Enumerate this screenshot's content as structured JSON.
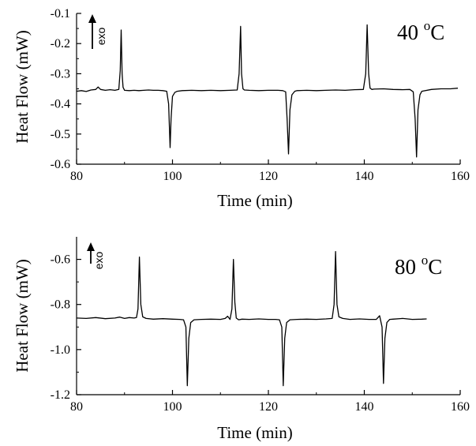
{
  "chart_data": [
    {
      "type": "line",
      "xlabel": "Time (min)",
      "ylabel": "Heat Flow (mW)",
      "xlim": [
        80,
        160
      ],
      "ylim": [
        -0.6,
        -0.1
      ],
      "x_ticks": [
        80,
        100,
        120,
        140,
        160
      ],
      "y_ticks": [
        -0.6,
        -0.5,
        -0.4,
        -0.3,
        -0.2,
        -0.1
      ],
      "x_tick_labels": [
        "80",
        "100",
        "120",
        "140",
        "160"
      ],
      "y_tick_labels": [
        "-0.6",
        "-0.5",
        "-0.4",
        "-0.3",
        "-0.2",
        "-0.1"
      ],
      "annotation": {
        "value": "40 ",
        "sup": "o",
        "unit": "C"
      },
      "direction_label": "exo",
      "grid": false,
      "series": [
        {
          "x": [
            80,
            81,
            82,
            83,
            84,
            84.5,
            85,
            86,
            87,
            88,
            88.8,
            89.1,
            89.3,
            89.5,
            89.7,
            90,
            91,
            92,
            93,
            94,
            95,
            96,
            97,
            98,
            98.8,
            99.2,
            99.5,
            99.7,
            100,
            100.5,
            101,
            102,
            104,
            106,
            108,
            110,
            112,
            113.5,
            113.9,
            114.2,
            114.4,
            114.7,
            115,
            116,
            118,
            120,
            122,
            123,
            123.6,
            123.9,
            124.2,
            124.5,
            124.9,
            125.5,
            126,
            128,
            130,
            132,
            134,
            136,
            138,
            139.8,
            140.3,
            140.6,
            140.9,
            141.2,
            141.6,
            142,
            144,
            146,
            148,
            149.5,
            150.2,
            150.6,
            150.9,
            151.2,
            151.6,
            152,
            154,
            156,
            158,
            159.5
          ],
          "y": [
            -0.358,
            -0.356,
            -0.359,
            -0.354,
            -0.352,
            -0.344,
            -0.352,
            -0.355,
            -0.353,
            -0.355,
            -0.352,
            -0.29,
            -0.155,
            -0.3,
            -0.345,
            -0.355,
            -0.356,
            -0.355,
            -0.356,
            -0.355,
            -0.354,
            -0.355,
            -0.355,
            -0.356,
            -0.358,
            -0.4,
            -0.545,
            -0.45,
            -0.375,
            -0.362,
            -0.358,
            -0.356,
            -0.355,
            -0.356,
            -0.355,
            -0.356,
            -0.355,
            -0.354,
            -0.3,
            -0.143,
            -0.3,
            -0.35,
            -0.354,
            -0.355,
            -0.356,
            -0.355,
            -0.355,
            -0.356,
            -0.36,
            -0.45,
            -0.566,
            -0.42,
            -0.37,
            -0.358,
            -0.356,
            -0.355,
            -0.356,
            -0.355,
            -0.354,
            -0.355,
            -0.353,
            -0.352,
            -0.3,
            -0.138,
            -0.3,
            -0.348,
            -0.352,
            -0.351,
            -0.35,
            -0.352,
            -0.353,
            -0.352,
            -0.36,
            -0.45,
            -0.576,
            -0.42,
            -0.37,
            -0.358,
            -0.352,
            -0.35,
            -0.35,
            -0.348
          ]
        }
      ]
    },
    {
      "type": "line",
      "xlabel": "Time (min)",
      "ylabel": "Heat Flow (mW)",
      "xlim": [
        80,
        160
      ],
      "ylim": [
        -1.2,
        -0.5
      ],
      "x_ticks": [
        80,
        100,
        120,
        140,
        160
      ],
      "y_ticks": [
        -1.2,
        -1.0,
        -0.8,
        -0.6
      ],
      "x_tick_labels": [
        "80",
        "100",
        "120",
        "140",
        "160"
      ],
      "y_tick_labels": [
        "-1.2",
        "-1.0",
        "-0.8",
        "-0.6"
      ],
      "annotation": {
        "value": "80 ",
        "sup": "o",
        "unit": "C"
      },
      "direction_label": "exo",
      "grid": false,
      "series": [
        {
          "x": [
            80,
            82,
            84,
            86,
            88,
            89,
            90,
            91,
            92,
            92.5,
            92.8,
            93.1,
            93.4,
            93.8,
            94.5,
            96,
            98,
            100,
            101.5,
            102.3,
            102.8,
            103.1,
            103.4,
            103.8,
            104.5,
            106,
            108,
            110,
            111,
            111.5,
            112,
            112.4,
            112.7,
            113,
            113.3,
            113.8,
            114.5,
            116,
            118,
            120,
            121.5,
            122.3,
            122.8,
            123.1,
            123.4,
            123.8,
            124.5,
            126,
            128,
            130,
            132,
            133.3,
            133.7,
            134,
            134.3,
            134.7,
            135.5,
            137,
            139,
            141,
            142.5,
            143.2,
            143.7,
            144,
            144.3,
            144.7,
            145.3,
            146,
            148,
            150,
            152,
            153
          ],
          "y": [
            -0.86,
            -0.862,
            -0.858,
            -0.863,
            -0.86,
            -0.856,
            -0.862,
            -0.858,
            -0.86,
            -0.858,
            -0.82,
            -0.59,
            -0.8,
            -0.855,
            -0.862,
            -0.865,
            -0.863,
            -0.865,
            -0.866,
            -0.868,
            -0.9,
            -1.16,
            -0.95,
            -0.88,
            -0.868,
            -0.866,
            -0.865,
            -0.866,
            -0.862,
            -0.852,
            -0.866,
            -0.82,
            -0.6,
            -0.79,
            -0.86,
            -0.868,
            -0.865,
            -0.866,
            -0.864,
            -0.866,
            -0.866,
            -0.868,
            -0.9,
            -1.16,
            -0.95,
            -0.88,
            -0.868,
            -0.866,
            -0.865,
            -0.866,
            -0.864,
            -0.862,
            -0.8,
            -0.565,
            -0.8,
            -0.855,
            -0.862,
            -0.866,
            -0.864,
            -0.866,
            -0.866,
            -0.85,
            -0.9,
            -1.15,
            -0.95,
            -0.88,
            -0.866,
            -0.865,
            -0.862,
            -0.866,
            -0.865,
            -0.864
          ]
        }
      ]
    }
  ]
}
